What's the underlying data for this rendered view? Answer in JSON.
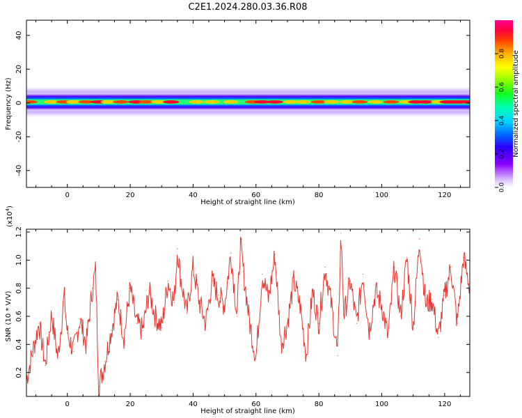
{
  "title": "C2E1.2024.280.03.36.R08",
  "chart_data": [
    {
      "type": "heatmap",
      "xlabel": "Height of straight line (km)",
      "ylabel": "Frequency (Hz)",
      "xlim": [
        -13,
        128
      ],
      "ylim": [
        -50,
        49
      ],
      "xticks": [
        0,
        20,
        40,
        60,
        80,
        100,
        120
      ],
      "xtick_labels": [
        "0",
        "20",
        "40",
        "60",
        "80",
        "100",
        "120"
      ],
      "yticks": [
        -40,
        -20,
        0,
        20,
        40
      ],
      "ytick_labels": [
        "-40",
        "-20",
        "0",
        "20",
        "40"
      ],
      "colorbar": {
        "label": "Normalized spectral amplitude",
        "range": [
          0,
          1
        ],
        "ticks": [
          0.0,
          0.2,
          0.4,
          0.6,
          0.8
        ],
        "tick_labels": [
          "0.0",
          "0.2",
          "0.4",
          "0.6",
          "0.8"
        ],
        "colormap": "rainbow"
      },
      "band_center_hz": 0.6,
      "band_halfwidth_hz": 4.5,
      "peaks_x_km": [
        -12,
        -5,
        -1,
        2,
        6,
        10,
        13,
        17,
        22,
        25,
        29,
        33,
        41,
        46,
        52,
        59,
        62,
        66,
        71,
        75,
        80,
        84,
        89,
        93,
        98,
        103,
        108,
        111,
        114,
        118,
        121,
        123,
        125,
        127
      ],
      "peak_amplitude": [
        0.93,
        0.9,
        0.95,
        0.88,
        0.92,
        0.97,
        0.86,
        0.94,
        0.99,
        0.91,
        0.87,
        0.96,
        0.85,
        0.9,
        0.88,
        0.92,
        0.97,
        0.99,
        0.9,
        0.86,
        0.94,
        0.89,
        0.87,
        0.91,
        0.85,
        0.93,
        0.9,
        0.98,
        0.97,
        0.88,
        0.99,
        1.0,
        1.0,
        0.99
      ]
    },
    {
      "type": "line",
      "xlabel": "Height of straight line (km)",
      "ylabel": "SNR (10 * V/V)",
      "multiplier_label": "(x10",
      "multiplier_exp": "4",
      "multiplier_close": ")",
      "xlim": [
        -13,
        128
      ],
      "ylim": [
        0.03,
        1.22
      ],
      "xticks": [
        0,
        20,
        40,
        60,
        80,
        100,
        120
      ],
      "xtick_labels": [
        "0",
        "20",
        "40",
        "60",
        "80",
        "100",
        "120"
      ],
      "yticks": [
        0.2,
        0.4,
        0.6,
        0.8,
        1.0,
        1.2
      ],
      "ytick_labels": [
        "0.2",
        "0.4",
        "0.6",
        "0.8",
        "1.0",
        "1.2"
      ],
      "series": [
        {
          "color": "#e8322c",
          "x": [
            -13,
            -11,
            -9,
            -7,
            -5,
            -3,
            -1,
            0,
            2,
            4,
            6,
            8,
            9,
            10,
            12,
            14,
            16,
            18,
            20,
            22,
            24,
            26,
            28,
            30,
            32,
            34,
            35,
            36,
            38,
            40,
            42,
            44,
            46,
            48,
            50,
            52,
            54,
            55,
            56,
            58,
            60,
            62,
            64,
            66,
            68,
            70,
            72,
            74,
            76,
            78,
            80,
            82,
            84,
            86,
            87,
            88,
            90,
            92,
            94,
            96,
            98,
            100,
            102,
            104,
            106,
            108,
            110,
            112,
            114,
            116,
            118,
            120,
            122,
            124,
            126,
            128
          ],
          "values": [
            0.15,
            0.35,
            0.55,
            0.25,
            0.62,
            0.3,
            0.75,
            0.48,
            0.35,
            0.58,
            0.4,
            0.8,
            0.93,
            0.1,
            0.28,
            0.5,
            0.72,
            0.45,
            0.8,
            0.55,
            0.5,
            0.78,
            0.6,
            0.52,
            0.85,
            0.7,
            1.08,
            0.88,
            0.62,
            0.95,
            0.7,
            0.55,
            0.85,
            0.75,
            0.68,
            1.05,
            0.6,
            1.12,
            0.92,
            0.55,
            0.3,
            0.9,
            0.72,
            1.04,
            0.4,
            0.55,
            0.85,
            0.68,
            0.32,
            0.78,
            0.55,
            0.95,
            0.68,
            0.32,
            1.19,
            0.6,
            0.85,
            0.55,
            0.9,
            0.5,
            0.78,
            0.68,
            0.45,
            0.95,
            0.6,
            1.02,
            0.52,
            1.15,
            0.68,
            0.72,
            0.45,
            0.75,
            0.95,
            0.55,
            1.02,
            0.8
          ]
        }
      ]
    }
  ]
}
